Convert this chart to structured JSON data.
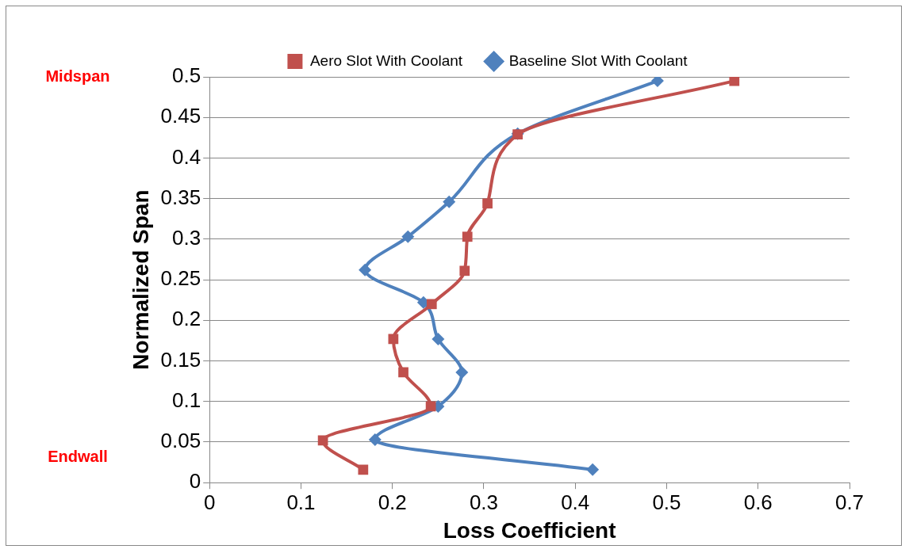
{
  "chart_data": {
    "type": "line",
    "xlabel": "Loss Coefficient",
    "ylabel": "Normalized Span",
    "xlim": [
      0,
      0.7
    ],
    "xticks": [
      0,
      0.1,
      0.2,
      0.3,
      0.4,
      0.5,
      0.6,
      0.7
    ],
    "ylim": [
      0,
      0.5
    ],
    "yticks": [
      0,
      0.05,
      0.1,
      0.15,
      0.2,
      0.25,
      0.3,
      0.35,
      0.4,
      0.45,
      0.5
    ],
    "grid": "y",
    "legend": "top",
    "line_style": "solid",
    "series": [
      {
        "name": "Baseline Slot With Coolant",
        "color": "#4f81bd",
        "marker": "diamond",
        "x": [
          0.49,
          0.337,
          0.262,
          0.217,
          0.17,
          0.234,
          0.25,
          0.276,
          0.25,
          0.181,
          0.419
        ],
        "values": [
          0.495,
          0.43,
          0.346,
          0.303,
          0.262,
          0.222,
          0.177,
          0.136,
          0.094,
          0.053,
          0.016
        ]
      },
      {
        "name": "Aero Slot With Coolant",
        "color": "#c0504d",
        "marker": "square",
        "x": [
          0.574,
          0.337,
          0.304,
          0.282,
          0.279,
          0.243,
          0.201,
          0.212,
          0.242,
          0.124,
          0.168
        ],
        "values": [
          0.495,
          0.429,
          0.344,
          0.303,
          0.261,
          0.22,
          0.177,
          0.136,
          0.094,
          0.052,
          0.016
        ]
      }
    ],
    "annotations": [
      "Midspan",
      "Endwall"
    ]
  }
}
